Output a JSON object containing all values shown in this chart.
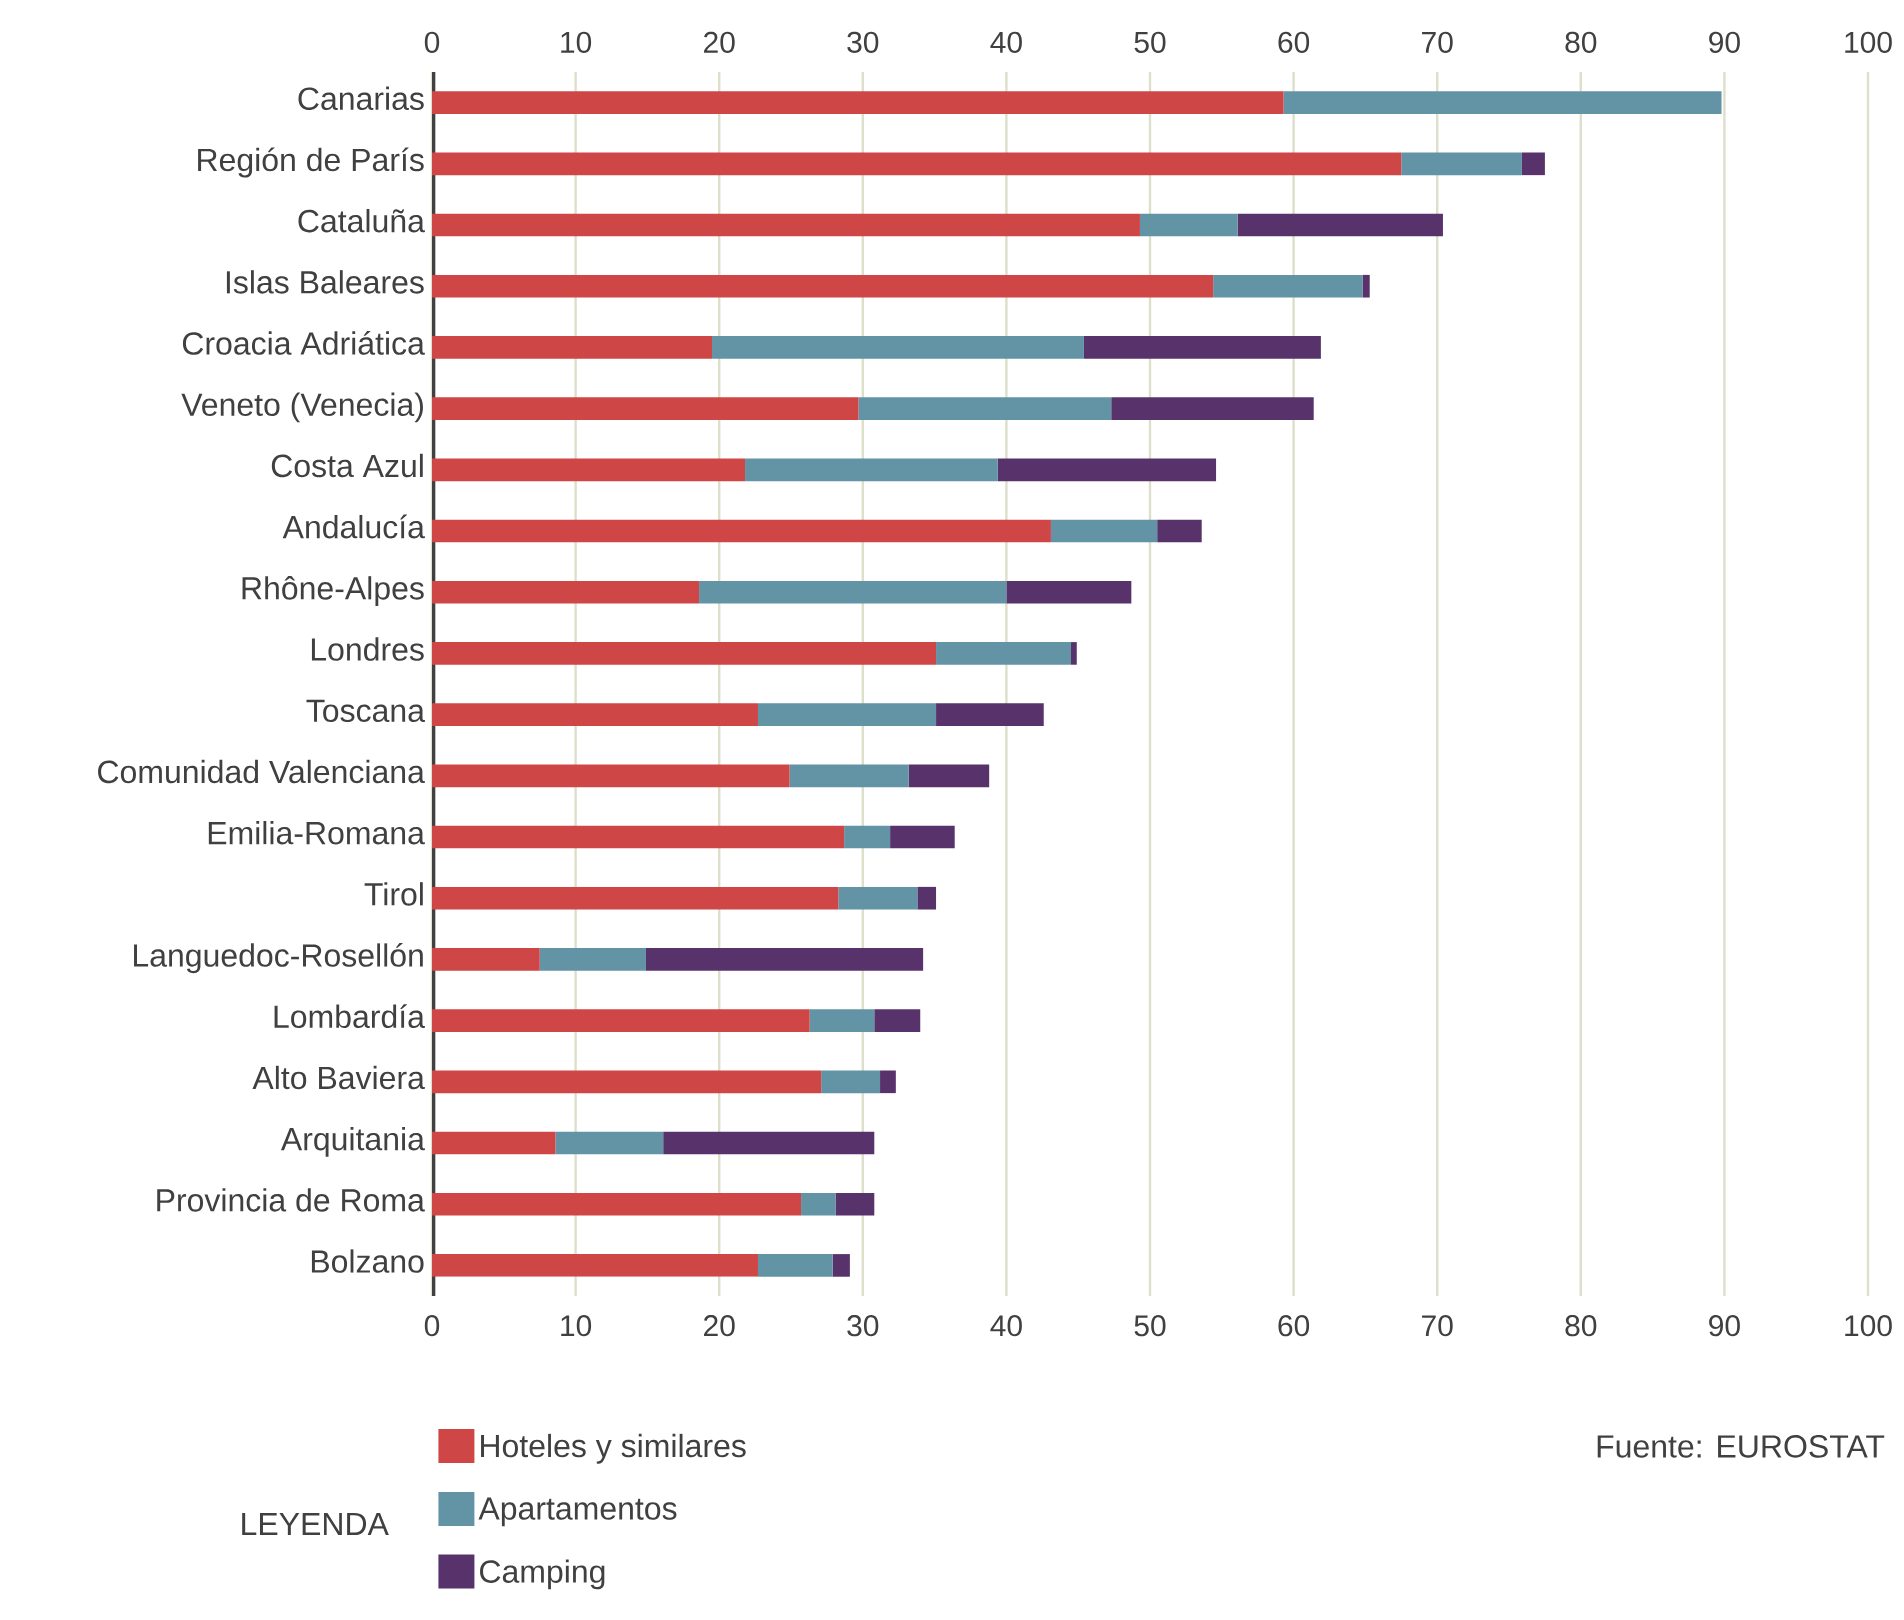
{
  "chart_data": {
    "type": "bar",
    "orientation": "horizontal",
    "stacked": true,
    "categories": [
      "Canarias",
      "Región de París",
      "Cataluña",
      "Islas Baleares",
      "Croacia Adriática",
      "Veneto (Venecia)",
      "Costa Azul",
      "Andalucía",
      "Rhône-Alpes",
      "Londres",
      "Toscana",
      "Comunidad Valenciana",
      "Emilia-Romana",
      "Tirol",
      "Languedoc-Rosellón",
      "Lombardía",
      "Alto Baviera",
      "Arquitania",
      "Provincia de Roma",
      "Bolzano"
    ],
    "series": [
      {
        "name": "Hoteles y similares",
        "color": "#cf4647",
        "values": [
          59.3,
          67.5,
          49.3,
          54.4,
          19.5,
          29.7,
          21.8,
          43.1,
          18.6,
          35.1,
          22.7,
          24.9,
          28.7,
          28.3,
          7.5,
          26.3,
          27.1,
          8.6,
          25.7,
          22.7
        ]
      },
      {
        "name": "Apartamentos",
        "color": "#6394a6",
        "values": [
          30.5,
          8.4,
          6.8,
          10.4,
          25.9,
          17.6,
          17.6,
          7.4,
          21.4,
          9.4,
          12.4,
          8.3,
          3.2,
          5.5,
          7.4,
          4.5,
          4.1,
          7.5,
          2.4,
          5.2
        ]
      },
      {
        "name": "Camping",
        "color": "#58336b",
        "values": [
          null,
          1.6,
          14.3,
          0.5,
          16.5,
          14.1,
          15.2,
          3.1,
          8.7,
          0.4,
          7.5,
          5.6,
          4.5,
          1.3,
          19.3,
          3.2,
          1.1,
          14.7,
          2.7,
          1.2
        ]
      }
    ],
    "xlim": [
      0,
      100
    ],
    "xticks": [
      0,
      10,
      20,
      30,
      40,
      50,
      60,
      70,
      80,
      90,
      100
    ],
    "x2lim": [
      0,
      100
    ],
    "x2ticks": [
      0,
      10,
      20,
      30,
      40,
      50,
      60,
      70,
      80,
      90,
      100
    ],
    "grid": "x",
    "legend": "bottom",
    "legend_title": "LEYENDA",
    "annotations": [
      "Fuente: EUROSTAT"
    ]
  }
}
